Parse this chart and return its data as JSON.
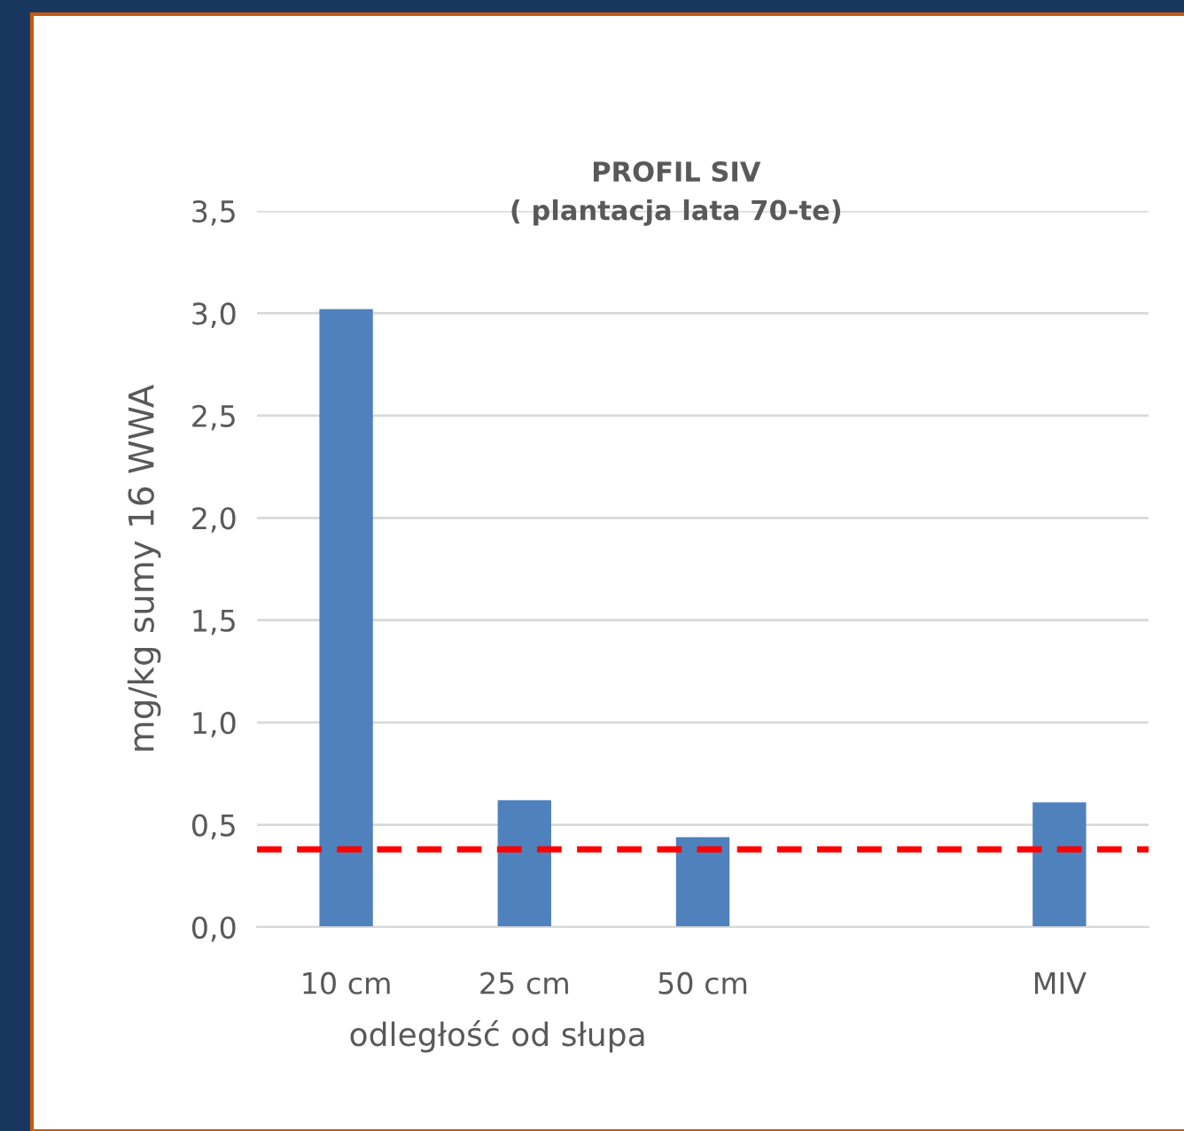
{
  "chart_data": {
    "type": "bar",
    "title": "PROFIL SIV\n( plantacja lata 70-te)",
    "xlabel": "odległość od słupa",
    "ylabel": "mg/kg sumy 16 WWA",
    "categories": [
      "10 cm",
      "25 cm",
      "50 cm",
      null,
      "MIV"
    ],
    "values": [
      3.02,
      0.62,
      0.44,
      null,
      0.61
    ],
    "color": "#4f81bd",
    "ylim": [
      0,
      3.5
    ],
    "yticks": [
      {
        "value": 0,
        "label": "0,0"
      },
      {
        "value": 0.5,
        "label": "0,5"
      },
      {
        "value": 1,
        "label": "1,0"
      },
      {
        "value": 1.5,
        "label": "1,5"
      },
      {
        "value": 2,
        "label": "2,0"
      },
      {
        "value": 2.5,
        "label": "2,5"
      },
      {
        "value": 3,
        "label": "3,0"
      },
      {
        "value": 3.5,
        "label": "3,5"
      }
    ],
    "grid": "y",
    "ref_lines": [
      {
        "axis": "y",
        "value": 0.38,
        "color": "#ff0000",
        "line_style": "dashed"
      }
    ]
  }
}
